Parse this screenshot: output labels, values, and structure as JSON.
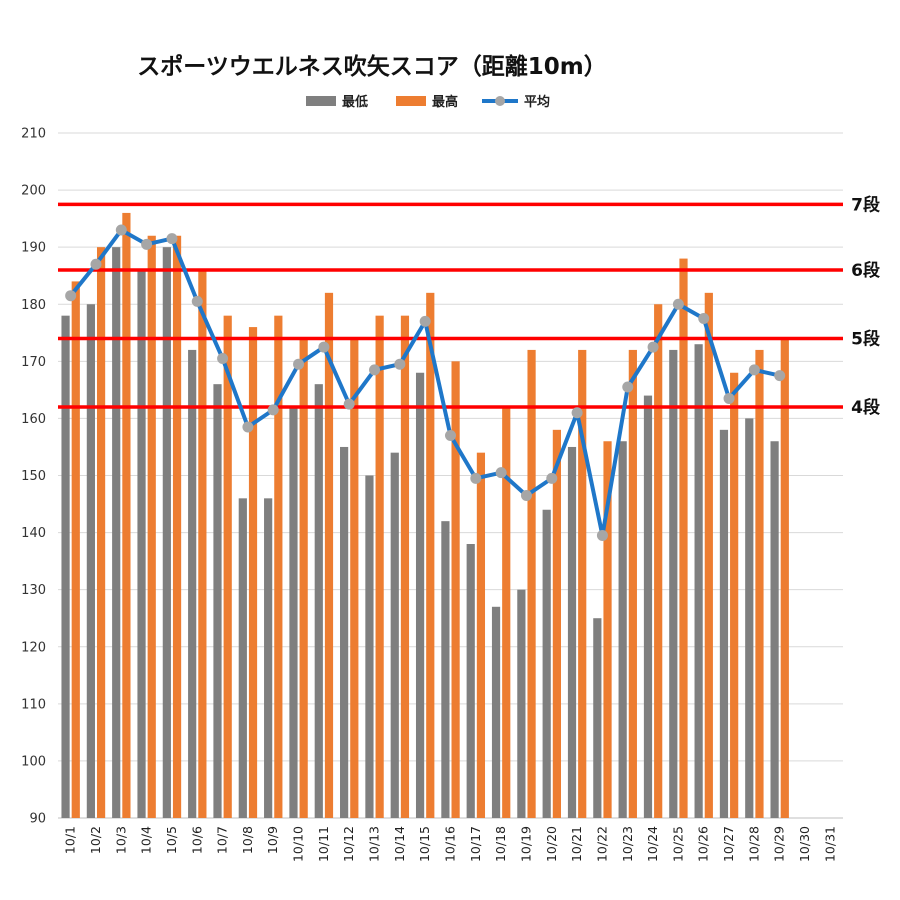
{
  "chart_data": {
    "type": "bar",
    "title": "スポーツウエルネス吹矢スコア（距離10m）",
    "categories": [
      "10/1",
      "10/2",
      "10/3",
      "10/4",
      "10/5",
      "10/6",
      "10/7",
      "10/8",
      "10/9",
      "10/10",
      "10/11",
      "10/12",
      "10/13",
      "10/14",
      "10/15",
      "10/16",
      "10/17",
      "10/18",
      "10/19",
      "10/20",
      "10/21",
      "10/22",
      "10/23",
      "10/24",
      "10/25",
      "10/26",
      "10/27",
      "10/28",
      "10/29",
      "10/30",
      "10/31"
    ],
    "series": [
      {
        "name": "最低",
        "type": "bar",
        "color": "#7f7f7f",
        "values": [
          178,
          180,
          190,
          186,
          190,
          172,
          166,
          146,
          146,
          162,
          166,
          155,
          150,
          154,
          168,
          142,
          138,
          127,
          130,
          144,
          155,
          125,
          156,
          164,
          172,
          173,
          158,
          160,
          156,
          null,
          null
        ]
      },
      {
        "name": "最高",
        "type": "bar",
        "color": "#ed7d31",
        "values": [
          184,
          190,
          196,
          192,
          192,
          186,
          178,
          176,
          178,
          174,
          182,
          174,
          178,
          178,
          182,
          170,
          154,
          162,
          172,
          158,
          172,
          156,
          172,
          180,
          188,
          182,
          168,
          172,
          174,
          null,
          null
        ]
      },
      {
        "name": "平均",
        "type": "line",
        "color": "#1f77c9",
        "marker_color": "#a6a6a6",
        "values": [
          181.5,
          187,
          193,
          190.5,
          191.5,
          180.5,
          170.5,
          158.5,
          161.5,
          169.5,
          172.5,
          162.5,
          168.5,
          169.5,
          177,
          157,
          149.5,
          150.5,
          146.5,
          149.5,
          161,
          139.5,
          165.5,
          172.5,
          180,
          177.5,
          163.5,
          168.5,
          167.5,
          null,
          null
        ]
      }
    ],
    "reference_lines": [
      {
        "value": 197.5,
        "label": "7段",
        "color": "#ff0000"
      },
      {
        "value": 186,
        "label": "6段",
        "color": "#ff0000"
      },
      {
        "value": 174,
        "label": "5段",
        "color": "#ff0000"
      },
      {
        "value": 162,
        "label": "4段",
        "color": "#ff0000"
      }
    ],
    "ylim": [
      90,
      210
    ],
    "yticks": [
      90,
      100,
      110,
      120,
      130,
      140,
      150,
      160,
      170,
      180,
      190,
      200,
      210
    ],
    "grid": true,
    "legend_position": "top"
  }
}
